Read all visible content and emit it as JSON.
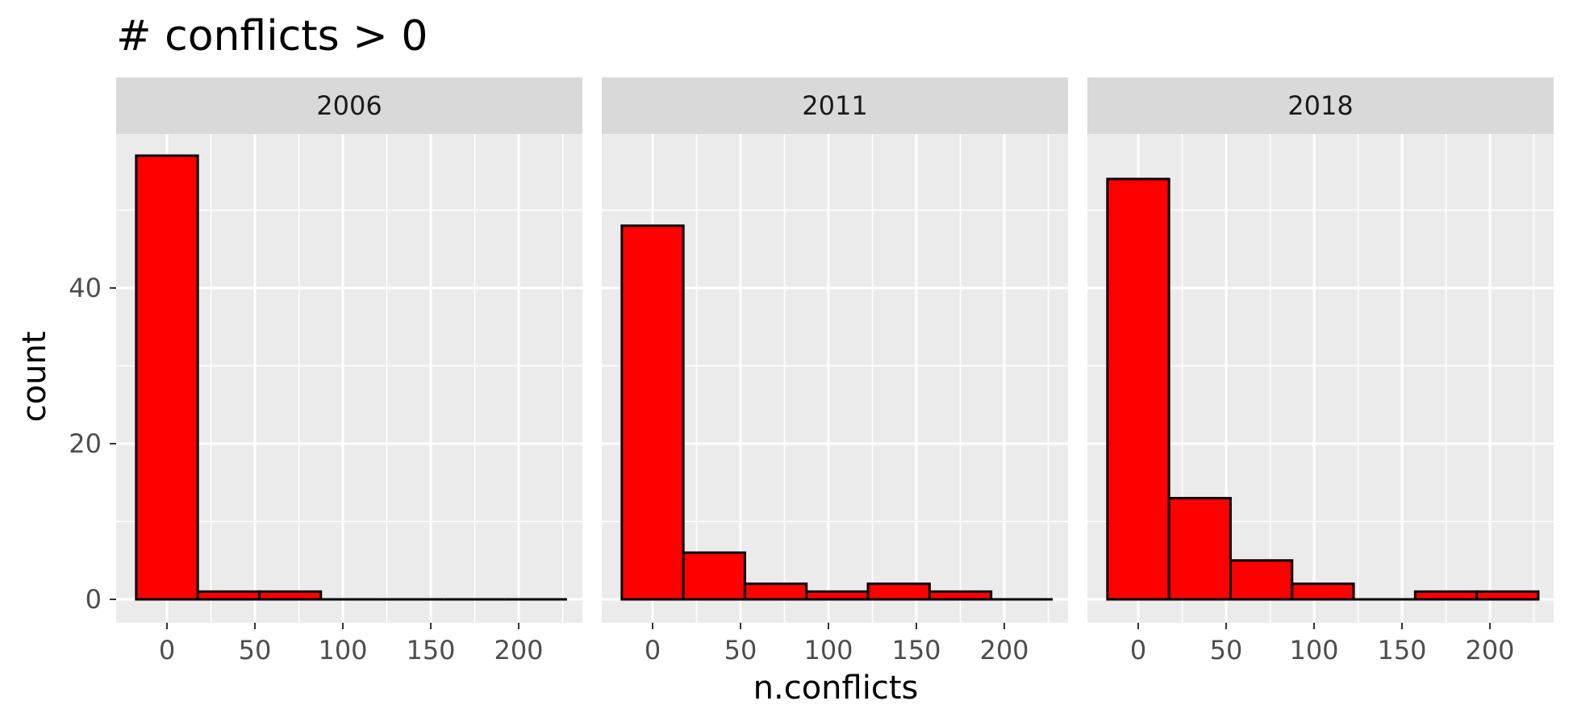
{
  "chart_data": {
    "type": "bar",
    "title": "# conflicts > 0",
    "xlabel": "n.conflicts",
    "ylabel": "count",
    "xlim": [
      -25,
      232
    ],
    "ylim": [
      -3,
      60
    ],
    "x_ticks": [
      "0",
      "50",
      "100",
      "150",
      "200"
    ],
    "y_ticks": [
      "0",
      "20",
      "40"
    ],
    "bin_edges": [
      -17.5,
      17.5,
      52.5,
      87.5,
      122.5,
      157.5,
      192.5,
      227.5
    ],
    "bar_color": "#ff0000",
    "bar_outline": "#000000",
    "panel_background": "#ebebeb",
    "strip_background": "#d9d9d9",
    "grid": true,
    "panels": [
      {
        "label": "2006",
        "values": [
          57,
          1,
          1,
          0,
          0,
          0,
          0
        ]
      },
      {
        "label": "2011",
        "values": [
          48,
          6,
          2,
          1,
          2,
          1,
          0
        ]
      },
      {
        "label": "2018",
        "values": [
          54,
          13,
          5,
          2,
          0,
          1,
          1
        ]
      }
    ]
  }
}
